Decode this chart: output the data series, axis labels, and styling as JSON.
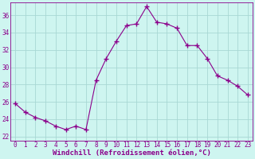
{
  "x": [
    0,
    1,
    2,
    3,
    4,
    5,
    6,
    7,
    8,
    9,
    10,
    11,
    12,
    13,
    14,
    15,
    16,
    17,
    18,
    19,
    20,
    21,
    22,
    23
  ],
  "y": [
    25.8,
    24.8,
    24.2,
    23.8,
    23.2,
    22.8,
    23.2,
    22.8,
    28.5,
    31.0,
    33.0,
    34.8,
    35.0,
    37.0,
    35.2,
    35.0,
    34.5,
    32.5,
    32.5,
    31.0,
    29.0,
    28.5,
    27.8,
    26.8
  ],
  "line_color": "#8B008B",
  "marker": "+",
  "marker_size": 4,
  "bg_color": "#cef5f0",
  "grid_color": "#a8d8d4",
  "xlabel": "Windchill (Refroidissement éolien,°C)",
  "xlabel_color": "#8B008B",
  "tick_color": "#8B008B",
  "spine_color": "#8B008B",
  "ylim": [
    21.5,
    37.5
  ],
  "xlim": [
    -0.5,
    23.5
  ],
  "yticks": [
    22,
    24,
    26,
    28,
    30,
    32,
    34,
    36
  ],
  "xticks": [
    0,
    1,
    2,
    3,
    4,
    5,
    6,
    7,
    8,
    9,
    10,
    11,
    12,
    13,
    14,
    15,
    16,
    17,
    18,
    19,
    20,
    21,
    22,
    23
  ],
  "xlabel_fontsize": 6.5,
  "tick_fontsize": 5.5
}
